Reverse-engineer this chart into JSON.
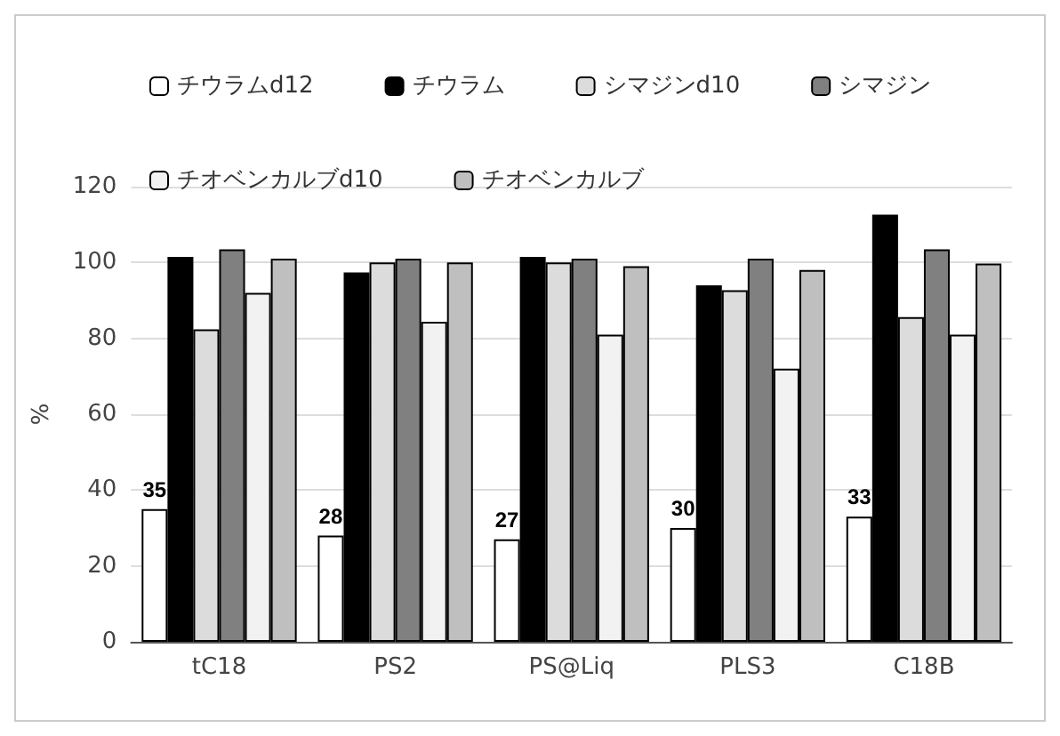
{
  "chart_data": {
    "type": "bar",
    "ylabel": "%",
    "categories": [
      "tC18",
      "PS2",
      "PS@Liq",
      "PLS3",
      "C18B"
    ],
    "series": [
      {
        "name": "チウラムd12",
        "color": "#ffffff",
        "values": [
          35,
          28,
          27,
          30,
          33
        ],
        "value_labels": [
          "35",
          "28",
          "27",
          "30",
          "33"
        ]
      },
      {
        "name": "チウラム",
        "color": "#000000",
        "values": [
          101.5,
          97.4,
          101.5,
          94,
          112.6
        ]
      },
      {
        "name": "シマジンd10",
        "color": "#dcdcdc",
        "values": [
          82.4,
          100,
          100,
          92.7,
          85.6
        ]
      },
      {
        "name": "シマジン",
        "color": "#808080",
        "values": [
          103.5,
          101,
          101,
          101,
          103.5
        ]
      },
      {
        "name": "チオベンカルブd10",
        "color": "#f2f2f2",
        "values": [
          92,
          84.4,
          81,
          72,
          81
        ]
      },
      {
        "name": "チオベンカルブ",
        "color": "#bfbfbf",
        "values": [
          101,
          100,
          99,
          98,
          99.7
        ]
      }
    ],
    "ylim": [
      0,
      120
    ],
    "yticks": [
      0,
      20,
      40,
      60,
      80,
      100,
      120
    ],
    "grid": "y",
    "legend": "top"
  }
}
